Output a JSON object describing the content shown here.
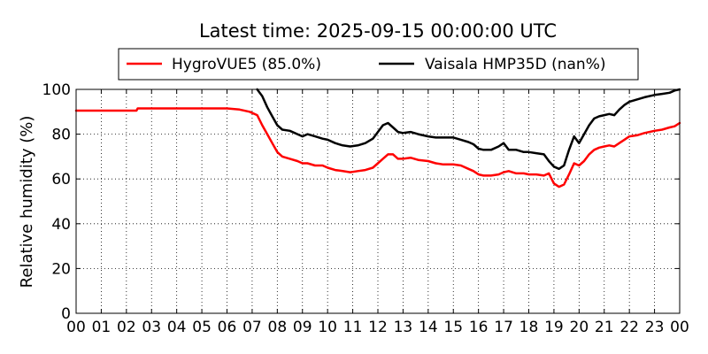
{
  "chart_data": {
    "type": "line",
    "title": "Latest time: 2025-09-15 00:00:00 UTC",
    "xlabel": "",
    "ylabel": "Relative humidity (%)",
    "xlim": [
      0,
      24
    ],
    "ylim": [
      0,
      100
    ],
    "xticks": [
      "00",
      "01",
      "02",
      "03",
      "04",
      "05",
      "06",
      "07",
      "08",
      "09",
      "10",
      "11",
      "12",
      "13",
      "14",
      "15",
      "16",
      "17",
      "18",
      "19",
      "20",
      "21",
      "22",
      "23",
      "00"
    ],
    "yticks": [
      "0",
      "20",
      "40",
      "60",
      "80",
      "100"
    ],
    "grid": true,
    "legend_position": "top",
    "series": [
      {
        "name": "HygroVUE5 (85.0%)",
        "color": "#ff0000",
        "x": [
          0,
          2.4,
          2.45,
          3.0,
          4.0,
          5.0,
          6.0,
          6.5,
          6.9,
          7.2,
          7.4,
          7.6,
          7.8,
          8.0,
          8.2,
          8.5,
          8.8,
          9.0,
          9.2,
          9.5,
          9.8,
          10.0,
          10.3,
          10.6,
          10.9,
          11.2,
          11.5,
          11.8,
          12.0,
          12.2,
          12.4,
          12.6,
          12.8,
          13.0,
          13.3,
          13.6,
          14.0,
          14.3,
          14.6,
          15.0,
          15.3,
          15.6,
          15.8,
          16.0,
          16.2,
          16.5,
          16.8,
          17.0,
          17.2,
          17.5,
          17.8,
          18.0,
          18.3,
          18.6,
          18.8,
          19.0,
          19.2,
          19.4,
          19.6,
          19.8,
          20.0,
          20.2,
          20.4,
          20.6,
          20.8,
          21.0,
          21.2,
          21.4,
          21.6,
          21.8,
          22.0,
          22.3,
          22.6,
          23.0,
          23.3,
          23.6,
          23.8,
          24.0
        ],
        "values": [
          90.5,
          90.5,
          91.5,
          91.5,
          91.5,
          91.5,
          91.5,
          91.0,
          90.0,
          88.5,
          84.0,
          80.0,
          76.0,
          72.0,
          70.0,
          69.0,
          68.0,
          67.0,
          67.0,
          66.0,
          66.0,
          65.0,
          64.0,
          63.5,
          63.0,
          63.5,
          64.0,
          65.0,
          67.0,
          69.0,
          71.0,
          71.0,
          69.0,
          69.0,
          69.5,
          68.5,
          68.0,
          67.0,
          66.5,
          66.5,
          66.0,
          64.5,
          63.5,
          62.0,
          61.5,
          61.5,
          62.0,
          63.0,
          63.5,
          62.5,
          62.5,
          62.0,
          62.0,
          61.5,
          62.5,
          58.0,
          56.5,
          57.5,
          62.0,
          67.0,
          66.0,
          68.0,
          71.0,
          73.0,
          74.0,
          74.5,
          75.0,
          74.5,
          76.0,
          77.5,
          79.0,
          79.5,
          80.5,
          81.5,
          82.0,
          83.0,
          83.5,
          85.0
        ]
      },
      {
        "name": "Vaisala HMP35D (nan%)",
        "color": "#000000",
        "x": [
          7.2,
          7.4,
          7.6,
          7.8,
          8.0,
          8.2,
          8.5,
          8.8,
          9.0,
          9.2,
          9.5,
          9.8,
          10.0,
          10.3,
          10.6,
          10.9,
          11.2,
          11.5,
          11.8,
          12.0,
          12.2,
          12.4,
          12.6,
          12.8,
          13.0,
          13.3,
          13.6,
          14.0,
          14.3,
          14.6,
          15.0,
          15.3,
          15.6,
          15.8,
          16.0,
          16.2,
          16.5,
          16.8,
          17.0,
          17.2,
          17.5,
          17.8,
          18.0,
          18.3,
          18.6,
          18.8,
          19.0,
          19.2,
          19.4,
          19.6,
          19.8,
          20.0,
          20.2,
          20.4,
          20.6,
          20.8,
          21.0,
          21.2,
          21.4,
          21.6,
          21.8,
          22.0,
          22.3,
          22.6,
          23.0,
          23.3,
          23.6,
          23.8,
          24.0
        ],
        "values": [
          100.0,
          97.0,
          92.0,
          88.0,
          84.0,
          82.0,
          81.5,
          80.0,
          79.0,
          80.0,
          79.0,
          78.0,
          77.5,
          76.0,
          75.0,
          74.5,
          75.0,
          76.0,
          78.0,
          81.0,
          84.0,
          85.0,
          83.0,
          81.0,
          80.5,
          81.0,
          80.0,
          79.0,
          78.5,
          78.5,
          78.5,
          77.5,
          76.5,
          75.5,
          73.5,
          73.0,
          73.0,
          74.5,
          76.0,
          73.0,
          73.0,
          72.0,
          72.0,
          71.5,
          71.0,
          68.0,
          65.5,
          64.5,
          66.0,
          73.0,
          79.0,
          76.0,
          80.0,
          84.0,
          87.0,
          88.0,
          88.5,
          89.0,
          88.5,
          91.0,
          93.0,
          94.5,
          95.5,
          96.5,
          97.5,
          98.0,
          98.5,
          99.5,
          100.0
        ]
      }
    ]
  }
}
